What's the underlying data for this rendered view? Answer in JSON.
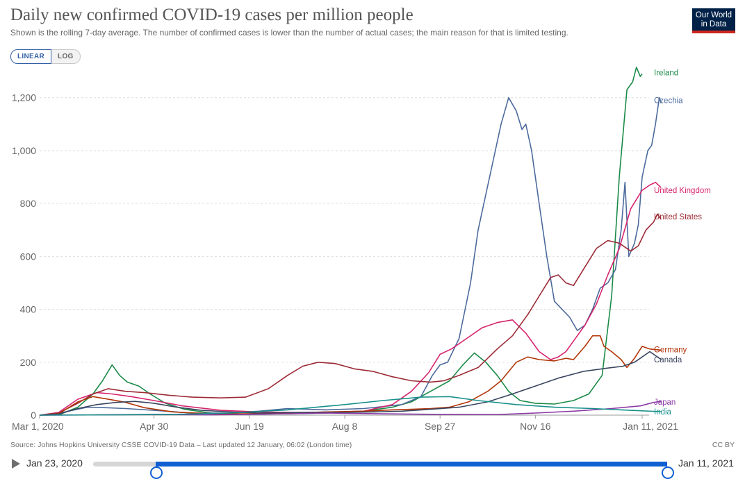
{
  "header": {
    "title": "Daily new confirmed COVID-19 cases per million people",
    "subtitle": "Shown is the rolling 7-day average. The number of confirmed cases is lower than the number of actual cases; the main reason for that is limited testing.",
    "logo_line1": "Our World",
    "logo_line2": "in Data"
  },
  "scale_toggle": {
    "linear": "LINEAR",
    "log": "LOG",
    "selected": "LINEAR"
  },
  "footer": {
    "source": "Source: Johns Hopkins University CSSE COVID-19 Data – Last updated 12 January, 06:02 (London time)",
    "license": "CC BY"
  },
  "timeline": {
    "start_label": "Jan 23, 2020",
    "end_label": "Jan 11, 2021",
    "selected_start_fraction": 0.109,
    "selected_end_fraction": 1.0
  },
  "colors": {
    "logo_bg": "#002147",
    "logo_accent": "#ce261e",
    "slider": "#0f5fd3"
  },
  "chart_data": {
    "type": "line",
    "title": "Daily new confirmed COVID-19 cases per million people",
    "x_unit": "days since Mar 1, 2020",
    "xlim": [
      0,
      316
    ],
    "ylim": [
      0,
      1320
    ],
    "y_scale": "linear",
    "grid": "horizontal dashed",
    "legend": "right end labels",
    "x_ticks": [
      {
        "value": 0,
        "label": "Mar 1, 2020"
      },
      {
        "value": 60,
        "label": "Apr 30"
      },
      {
        "value": 110,
        "label": "Jun 19"
      },
      {
        "value": 160,
        "label": "Aug 8"
      },
      {
        "value": 210,
        "label": "Sep 27"
      },
      {
        "value": 260,
        "label": "Nov 16"
      },
      {
        "value": 316,
        "label": "Jan 11, 2021"
      }
    ],
    "y_ticks": [
      {
        "value": 0,
        "label": "0"
      },
      {
        "value": 200,
        "label": "200"
      },
      {
        "value": 400,
        "label": "400"
      },
      {
        "value": 600,
        "label": "600"
      },
      {
        "value": 800,
        "label": "800"
      },
      {
        "value": 1000,
        "label": "1,000"
      },
      {
        "value": 1200,
        "label": "1,200"
      }
    ],
    "series": [
      {
        "name": "Ireland",
        "color": "#1a8a47",
        "label_y": 1295,
        "points": [
          [
            0,
            0
          ],
          [
            10,
            1
          ],
          [
            20,
            30
          ],
          [
            28,
            80
          ],
          [
            33,
            130
          ],
          [
            38,
            190
          ],
          [
            42,
            150
          ],
          [
            46,
            125
          ],
          [
            52,
            110
          ],
          [
            58,
            80
          ],
          [
            66,
            45
          ],
          [
            76,
            22
          ],
          [
            90,
            8
          ],
          [
            110,
            4
          ],
          [
            130,
            5
          ],
          [
            150,
            8
          ],
          [
            170,
            15
          ],
          [
            185,
            30
          ],
          [
            195,
            50
          ],
          [
            205,
            90
          ],
          [
            215,
            130
          ],
          [
            222,
            190
          ],
          [
            228,
            235
          ],
          [
            234,
            200
          ],
          [
            240,
            150
          ],
          [
            246,
            90
          ],
          [
            252,
            55
          ],
          [
            260,
            45
          ],
          [
            270,
            42
          ],
          [
            280,
            55
          ],
          [
            288,
            80
          ],
          [
            295,
            150
          ],
          [
            300,
            450
          ],
          [
            304,
            900
          ],
          [
            308,
            1230
          ],
          [
            311,
            1260
          ],
          [
            313,
            1315
          ],
          [
            315,
            1280
          ],
          [
            316,
            1290
          ]
        ]
      },
      {
        "name": "Czechia",
        "color": "#4c6a9c",
        "label_y": 1190,
        "points": [
          [
            0,
            0
          ],
          [
            6,
            1
          ],
          [
            15,
            15
          ],
          [
            25,
            30
          ],
          [
            35,
            28
          ],
          [
            45,
            25
          ],
          [
            60,
            18
          ],
          [
            80,
            8
          ],
          [
            100,
            8
          ],
          [
            115,
            15
          ],
          [
            130,
            25
          ],
          [
            150,
            20
          ],
          [
            170,
            25
          ],
          [
            190,
            40
          ],
          [
            200,
            70
          ],
          [
            206,
            150
          ],
          [
            210,
            190
          ],
          [
            214,
            200
          ],
          [
            220,
            290
          ],
          [
            226,
            500
          ],
          [
            230,
            700
          ],
          [
            236,
            900
          ],
          [
            242,
            1100
          ],
          [
            246,
            1200
          ],
          [
            250,
            1150
          ],
          [
            253,
            1080
          ],
          [
            255,
            1100
          ],
          [
            258,
            1000
          ],
          [
            262,
            800
          ],
          [
            266,
            600
          ],
          [
            270,
            430
          ],
          [
            274,
            400
          ],
          [
            278,
            370
          ],
          [
            282,
            320
          ],
          [
            286,
            340
          ],
          [
            290,
            400
          ],
          [
            294,
            480
          ],
          [
            298,
            500
          ],
          [
            302,
            550
          ],
          [
            305,
            700
          ],
          [
            307,
            880
          ],
          [
            309,
            600
          ],
          [
            312,
            650
          ],
          [
            314,
            720
          ],
          [
            316,
            900
          ],
          [
            319,
            1000
          ],
          [
            321,
            1020
          ],
          [
            323,
            1100
          ],
          [
            325,
            1200
          ],
          [
            326,
            1180
          ]
        ]
      },
      {
        "name": "United Kingdom",
        "color": "#d6246e",
        "label_y": 850,
        "points": [
          [
            0,
            0
          ],
          [
            10,
            10
          ],
          [
            20,
            60
          ],
          [
            30,
            85
          ],
          [
            38,
            80
          ],
          [
            48,
            70
          ],
          [
            60,
            55
          ],
          [
            75,
            35
          ],
          [
            95,
            18
          ],
          [
            115,
            12
          ],
          [
            135,
            10
          ],
          [
            155,
            12
          ],
          [
            170,
            15
          ],
          [
            185,
            40
          ],
          [
            195,
            90
          ],
          [
            204,
            160
          ],
          [
            210,
            230
          ],
          [
            216,
            250
          ],
          [
            224,
            290
          ],
          [
            232,
            330
          ],
          [
            240,
            350
          ],
          [
            248,
            360
          ],
          [
            255,
            310
          ],
          [
            262,
            240
          ],
          [
            268,
            210
          ],
          [
            272,
            220
          ],
          [
            276,
            240
          ],
          [
            280,
            280
          ],
          [
            286,
            340
          ],
          [
            292,
            420
          ],
          [
            298,
            530
          ],
          [
            304,
            630
          ],
          [
            310,
            780
          ],
          [
            316,
            850
          ],
          [
            320,
            870
          ],
          [
            323,
            880
          ],
          [
            326,
            860
          ]
        ]
      },
      {
        "name": "United States",
        "color": "#9c2a35",
        "label_y": 750,
        "points": [
          [
            0,
            0
          ],
          [
            10,
            8
          ],
          [
            20,
            45
          ],
          [
            28,
            80
          ],
          [
            36,
            100
          ],
          [
            45,
            90
          ],
          [
            55,
            85
          ],
          [
            68,
            75
          ],
          [
            80,
            68
          ],
          [
            95,
            65
          ],
          [
            108,
            68
          ],
          [
            120,
            100
          ],
          [
            130,
            150
          ],
          [
            138,
            185
          ],
          [
            146,
            200
          ],
          [
            155,
            195
          ],
          [
            165,
            175
          ],
          [
            175,
            165
          ],
          [
            185,
            145
          ],
          [
            195,
            130
          ],
          [
            205,
            125
          ],
          [
            212,
            130
          ],
          [
            220,
            150
          ],
          [
            230,
            180
          ],
          [
            240,
            250
          ],
          [
            248,
            300
          ],
          [
            256,
            380
          ],
          [
            262,
            450
          ],
          [
            268,
            520
          ],
          [
            272,
            530
          ],
          [
            276,
            500
          ],
          [
            280,
            490
          ],
          [
            286,
            560
          ],
          [
            292,
            630
          ],
          [
            298,
            660
          ],
          [
            304,
            650
          ],
          [
            310,
            620
          ],
          [
            314,
            640
          ],
          [
            318,
            700
          ],
          [
            322,
            730
          ],
          [
            324,
            760
          ],
          [
            326,
            740
          ]
        ]
      },
      {
        "name": "Germany",
        "color": "#b13507",
        "label_y": 248,
        "points": [
          [
            0,
            0
          ],
          [
            10,
            5
          ],
          [
            20,
            50
          ],
          [
            28,
            70
          ],
          [
            36,
            60
          ],
          [
            44,
            50
          ],
          [
            55,
            28
          ],
          [
            70,
            12
          ],
          [
            90,
            5
          ],
          [
            110,
            5
          ],
          [
            130,
            8
          ],
          [
            150,
            12
          ],
          [
            170,
            15
          ],
          [
            185,
            20
          ],
          [
            195,
            22
          ],
          [
            205,
            25
          ],
          [
            215,
            30
          ],
          [
            225,
            50
          ],
          [
            235,
            90
          ],
          [
            242,
            130
          ],
          [
            250,
            200
          ],
          [
            256,
            220
          ],
          [
            262,
            210
          ],
          [
            270,
            205
          ],
          [
            276,
            215
          ],
          [
            280,
            210
          ],
          [
            286,
            260
          ],
          [
            290,
            300
          ],
          [
            294,
            300
          ],
          [
            296,
            260
          ],
          [
            300,
            240
          ],
          [
            305,
            210
          ],
          [
            308,
            180
          ],
          [
            312,
            215
          ],
          [
            316,
            260
          ],
          [
            320,
            250
          ],
          [
            326,
            245
          ]
        ]
      },
      {
        "name": "Canada",
        "color": "#39455f",
        "label_y": 210,
        "points": [
          [
            0,
            0
          ],
          [
            10,
            4
          ],
          [
            20,
            25
          ],
          [
            30,
            40
          ],
          [
            40,
            48
          ],
          [
            50,
            52
          ],
          [
            60,
            45
          ],
          [
            72,
            30
          ],
          [
            85,
            18
          ],
          [
            100,
            12
          ],
          [
            115,
            8
          ],
          [
            135,
            10
          ],
          [
            155,
            10
          ],
          [
            175,
            12
          ],
          [
            190,
            15
          ],
          [
            205,
            22
          ],
          [
            220,
            30
          ],
          [
            235,
            50
          ],
          [
            248,
            80
          ],
          [
            260,
            110
          ],
          [
            272,
            140
          ],
          [
            285,
            165
          ],
          [
            298,
            178
          ],
          [
            306,
            185
          ],
          [
            312,
            200
          ],
          [
            316,
            220
          ],
          [
            320,
            240
          ],
          [
            326,
            210
          ]
        ]
      },
      {
        "name": "Japan",
        "color": "#8c3ba6",
        "label_y": 50,
        "points": [
          [
            0,
            0
          ],
          [
            30,
            1
          ],
          [
            60,
            3
          ],
          [
            90,
            1
          ],
          [
            120,
            4
          ],
          [
            150,
            8
          ],
          [
            180,
            5
          ],
          [
            210,
            3
          ],
          [
            240,
            2
          ],
          [
            260,
            8
          ],
          [
            280,
            15
          ],
          [
            300,
            25
          ],
          [
            315,
            35
          ],
          [
            322,
            48
          ],
          [
            326,
            52
          ]
        ]
      },
      {
        "name": "India",
        "color": "#18908b",
        "label_y": 13,
        "points": [
          [
            0,
            0
          ],
          [
            40,
            1
          ],
          [
            70,
            3
          ],
          [
            100,
            8
          ],
          [
            130,
            20
          ],
          [
            160,
            40
          ],
          [
            180,
            55
          ],
          [
            200,
            68
          ],
          [
            215,
            70
          ],
          [
            230,
            55
          ],
          [
            250,
            40
          ],
          [
            270,
            30
          ],
          [
            290,
            25
          ],
          [
            310,
            18
          ],
          [
            326,
            13
          ]
        ]
      }
    ]
  }
}
